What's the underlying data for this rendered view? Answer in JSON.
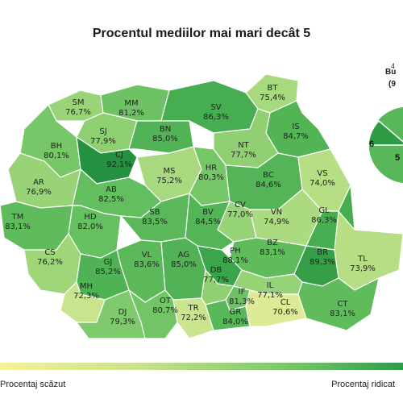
{
  "title": "Procentul mediilor mai mari decât 5",
  "legend": {
    "low": "Procentaj scăzut",
    "high": "Procentaj ridicat",
    "low_color": "#f5f19a",
    "high_color": "#2e9c4a"
  },
  "inset": {
    "caption": "4",
    "name": "Bu",
    "value": "(9",
    "sector_a": "6",
    "sector_b": "5"
  },
  "colors": {
    "border": "#ffffff",
    "outline": "#9a9a9a"
  },
  "counties": [
    {
      "code": "SM",
      "value": "76,7%",
      "pct": 76.7
    },
    {
      "code": "MM",
      "value": "81,2%",
      "pct": 81.2
    },
    {
      "code": "BT",
      "value": "75,4%",
      "pct": 75.4
    },
    {
      "code": "SV",
      "value": "86,3%",
      "pct": 86.3
    },
    {
      "code": "SJ",
      "value": "77,9%",
      "pct": 77.9
    },
    {
      "code": "BN",
      "value": "85,0%",
      "pct": 85.0
    },
    {
      "code": "IS",
      "value": "84,7%",
      "pct": 84.7
    },
    {
      "code": "BH",
      "value": "80,1%",
      "pct": 80.1
    },
    {
      "code": "CJ",
      "value": "92,1%",
      "pct": 92.1
    },
    {
      "code": "NT",
      "value": "77,7%",
      "pct": 77.7
    },
    {
      "code": "MS",
      "value": "75,2%",
      "pct": 75.2
    },
    {
      "code": "HR",
      "value": "80,3%",
      "pct": 80.3
    },
    {
      "code": "BC",
      "value": "84,6%",
      "pct": 84.6
    },
    {
      "code": "VS",
      "value": "74,0%",
      "pct": 74.0
    },
    {
      "code": "AR",
      "value": "76,9%",
      "pct": 76.9
    },
    {
      "code": "AB",
      "value": "82,5%",
      "pct": 82.5
    },
    {
      "code": "CV",
      "value": "77,0%",
      "pct": 77.0
    },
    {
      "code": "VN",
      "value": "74,9%",
      "pct": 74.9
    },
    {
      "code": "GL",
      "value": "86,3%",
      "pct": 86.3
    },
    {
      "code": "TM",
      "value": "83,1%",
      "pct": 83.1
    },
    {
      "code": "HD",
      "value": "82,0%",
      "pct": 82.0
    },
    {
      "code": "SB",
      "value": "83,5%",
      "pct": 83.5
    },
    {
      "code": "BV",
      "value": "84,5%",
      "pct": 84.5
    },
    {
      "code": "BZ",
      "value": "83,1%",
      "pct": 83.1
    },
    {
      "code": "BR",
      "value": "89,3%",
      "pct": 89.3
    },
    {
      "code": "CS",
      "value": "76,2%",
      "pct": 76.2
    },
    {
      "code": "VL",
      "value": "83,6%",
      "pct": 83.6
    },
    {
      "code": "AG",
      "value": "85,0%",
      "pct": 85.0
    },
    {
      "code": "PH",
      "value": "88,1%",
      "pct": 88.1
    },
    {
      "code": "TL",
      "value": "73,9%",
      "pct": 73.9
    },
    {
      "code": "GJ",
      "value": "85,2%",
      "pct": 85.2
    },
    {
      "code": "DB",
      "value": "77,7%",
      "pct": 77.7
    },
    {
      "code": "MH",
      "value": "72,3%",
      "pct": 72.3
    },
    {
      "code": "IF",
      "value": "81,3%",
      "pct": 81.3
    },
    {
      "code": "IL",
      "value": "77,1%",
      "pct": 77.1
    },
    {
      "code": "OT",
      "value": "80,7%",
      "pct": 80.7
    },
    {
      "code": "DJ",
      "value": "79,3%",
      "pct": 79.3
    },
    {
      "code": "TR",
      "value": "72,2%",
      "pct": 72.2
    },
    {
      "code": "GR",
      "value": "84,0%",
      "pct": 84.0
    },
    {
      "code": "CL",
      "value": "70,6%",
      "pct": 70.6
    },
    {
      "code": "CT",
      "value": "83,1%",
      "pct": 83.1
    }
  ]
}
